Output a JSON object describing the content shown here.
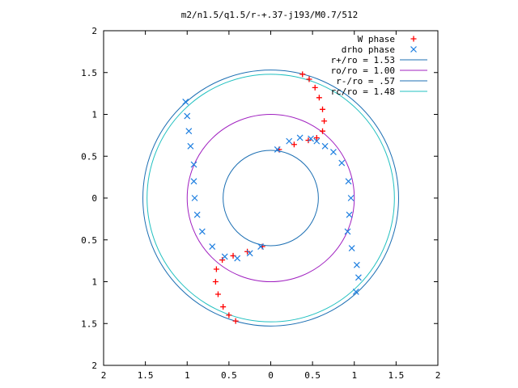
{
  "chart_data": {
    "type": "scatter",
    "title": "m2/n1.5/q1.5/r-+.37-j193/M0.7/512",
    "xlabel": "",
    "ylabel": "",
    "xlim": [
      -2,
      2
    ],
    "ylim": [
      -2,
      2
    ],
    "x_tick_values": [
      -2,
      -1.5,
      -1,
      -0.5,
      0,
      0.5,
      1,
      1.5,
      2
    ],
    "x_tick_labels": [
      "2",
      "1.5",
      "1",
      "0.5",
      "0",
      "0.5",
      "1",
      "1.5",
      "2"
    ],
    "y_tick_values": [
      2,
      1.5,
      1,
      0.5,
      0,
      -0.5,
      -1,
      -1.5,
      -2
    ],
    "y_tick_labels": [
      "2",
      "1.5",
      "1",
      "0.5",
      "0",
      "0.5",
      "1",
      "1.5",
      "2"
    ],
    "grid": false,
    "legend_position": "top-right",
    "circles": [
      {
        "name": "r+/ro = 1.53",
        "radius": 1.53,
        "color": "#1c6fb3"
      },
      {
        "name": "ro/ro = 1.00",
        "radius": 1.0,
        "color": "#a020c0"
      },
      {
        "name": "r-/ro = .57",
        "radius": 0.57,
        "color": "#1c6fb3"
      },
      {
        "name": "rc/ro = 1.48",
        "radius": 1.48,
        "color": "#20c0c0"
      }
    ],
    "series": [
      {
        "name": "W phase",
        "marker": "+",
        "color": "#ff0000",
        "points": [
          [
            0.1,
            0.58
          ],
          [
            0.28,
            0.64
          ],
          [
            0.45,
            0.69
          ],
          [
            0.55,
            0.72
          ],
          [
            0.62,
            0.8
          ],
          [
            0.64,
            0.92
          ],
          [
            0.62,
            1.06
          ],
          [
            0.58,
            1.2
          ],
          [
            0.53,
            1.32
          ],
          [
            0.46,
            1.42
          ],
          [
            0.38,
            1.48
          ],
          [
            -0.1,
            -0.58
          ],
          [
            -0.28,
            -0.64
          ],
          [
            -0.45,
            -0.69
          ],
          [
            -0.58,
            -0.74
          ],
          [
            -0.65,
            -0.85
          ],
          [
            -0.66,
            -1.0
          ],
          [
            -0.63,
            -1.15
          ],
          [
            -0.57,
            -1.3
          ],
          [
            -0.5,
            -1.4
          ],
          [
            -0.42,
            -1.47
          ]
        ]
      },
      {
        "name": "drho phase",
        "marker": "x",
        "color": "#1e7fe0",
        "points": [
          [
            0.08,
            0.58
          ],
          [
            0.22,
            0.68
          ],
          [
            0.35,
            0.72
          ],
          [
            0.48,
            0.71
          ],
          [
            0.55,
            0.68
          ],
          [
            0.65,
            0.62
          ],
          [
            0.75,
            0.55
          ],
          [
            0.85,
            0.42
          ],
          [
            0.93,
            0.2
          ],
          [
            0.96,
            0.0
          ],
          [
            0.94,
            -0.2
          ],
          [
            0.92,
            -0.4
          ],
          [
            0.97,
            -0.6
          ],
          [
            1.03,
            -0.8
          ],
          [
            1.05,
            -0.95
          ],
          [
            1.02,
            -1.12
          ],
          [
            -1.02,
            1.15
          ],
          [
            -1.0,
            0.98
          ],
          [
            -0.98,
            0.8
          ],
          [
            -0.96,
            0.62
          ],
          [
            -0.92,
            0.4
          ],
          [
            -0.92,
            0.2
          ],
          [
            -0.91,
            0.0
          ],
          [
            -0.88,
            -0.2
          ],
          [
            -0.82,
            -0.4
          ],
          [
            -0.7,
            -0.58
          ],
          [
            -0.55,
            -0.7
          ],
          [
            -0.4,
            -0.72
          ],
          [
            -0.25,
            -0.66
          ],
          [
            -0.12,
            -0.58
          ]
        ]
      }
    ]
  }
}
